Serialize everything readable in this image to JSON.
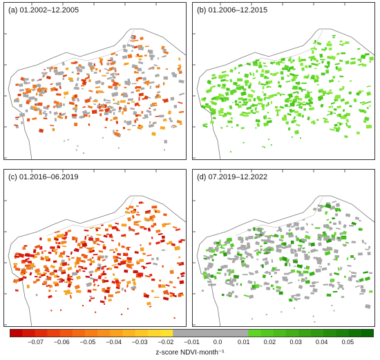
{
  "panels": [
    {
      "title": "(a) 01.2002–12.2005",
      "palette": [
        "#e8551a",
        "#f08a1f",
        "#f5a623",
        "#ef7620",
        "#d93d12"
      ],
      "gray_share": 0.45,
      "color_share": 0.55
    },
    {
      "title": "(b) 01.2006–12.2015",
      "palette": [
        "#5fd62a",
        "#75e032",
        "#4cc81c",
        "#8ae83e"
      ],
      "gray_share": 0.0,
      "color_share": 1.0
    },
    {
      "title": "(c) 01.2016–06.2019",
      "palette": [
        "#e2200f",
        "#f07a1f",
        "#f3a222",
        "#ea5a17",
        "#c8120c"
      ],
      "gray_share": 0.05,
      "color_share": 0.95
    },
    {
      "title": "(d) 07.2019–12.2022",
      "palette": [
        "#3bb21a",
        "#52c825",
        "#2e9a14",
        "#6ad536"
      ],
      "gray_share": 0.65,
      "color_share": 0.35
    }
  ],
  "gray_color": "#a8a8a8",
  "colorbar": {
    "segments": [
      "#c00000",
      "#d41404",
      "#e02a08",
      "#ea400b",
      "#f0560f",
      "#f46a13",
      "#f77d17",
      "#f98f1b",
      "#fba11e",
      "#fcb322",
      "#fdc525",
      "#fed52a",
      "#fee12e",
      "#a9a9a9",
      "#a9a9a9",
      "#a9a9a9",
      "#a9a9a9",
      "#a9a9a9",
      "#a9a9a9",
      "#5fd425",
      "#55c820",
      "#4bbc1c",
      "#41b018",
      "#37a414",
      "#2d9810",
      "#238c0c",
      "#198008",
      "#0f7404",
      "#056800"
    ],
    "labels": [
      "−0.07",
      "−0.06",
      "−0.05",
      "−0.04",
      "−0.03",
      "−0.02",
      "−0.01",
      "0.0",
      "0.01",
      "0.02",
      "0.03",
      "0.04",
      "0.05"
    ],
    "min": -0.08,
    "max": 0.06,
    "unit": "z-score NDVI·month⁻¹"
  }
}
